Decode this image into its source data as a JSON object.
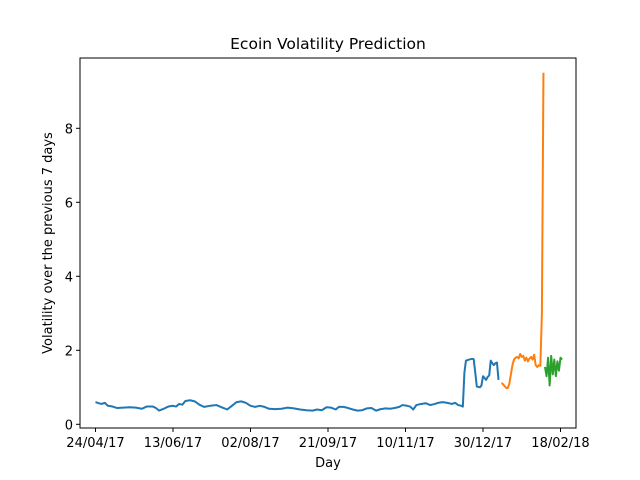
{
  "chart_data": {
    "type": "line",
    "title": "Ecoin Volatility Prediction",
    "xlabel": "Day",
    "ylabel": "Volatility over the previous 7 days",
    "xlim": [
      "2017-04-14",
      "2018-02-28"
    ],
    "ylim": [
      -0.1,
      9.9
    ],
    "x_ticks": [
      {
        "date": "2017-04-24",
        "label": "24/04/17"
      },
      {
        "date": "2017-06-13",
        "label": "13/06/17"
      },
      {
        "date": "2017-08-02",
        "label": "02/08/17"
      },
      {
        "date": "2017-09-21",
        "label": "21/09/17"
      },
      {
        "date": "2017-11-10",
        "label": "10/11/17"
      },
      {
        "date": "2017-12-30",
        "label": "30/12/17"
      },
      {
        "date": "2018-02-18",
        "label": "18/02/18"
      }
    ],
    "y_ticks": [
      0,
      2,
      4,
      6,
      8
    ],
    "grid": false,
    "series": [
      {
        "color": "#1f77b4",
        "points": [
          [
            "2017-04-24",
            0.6
          ],
          [
            "2017-04-26",
            0.57
          ],
          [
            "2017-04-28",
            0.55
          ],
          [
            "2017-04-30",
            0.58
          ],
          [
            "2017-05-02",
            0.5
          ],
          [
            "2017-05-05",
            0.48
          ],
          [
            "2017-05-08",
            0.44
          ],
          [
            "2017-05-12",
            0.45
          ],
          [
            "2017-05-16",
            0.46
          ],
          [
            "2017-05-20",
            0.45
          ],
          [
            "2017-05-24",
            0.42
          ],
          [
            "2017-05-27",
            0.48
          ],
          [
            "2017-05-31",
            0.48
          ],
          [
            "2017-06-02",
            0.44
          ],
          [
            "2017-06-04",
            0.37
          ],
          [
            "2017-06-07",
            0.42
          ],
          [
            "2017-06-10",
            0.48
          ],
          [
            "2017-06-13",
            0.5
          ],
          [
            "2017-06-15",
            0.48
          ],
          [
            "2017-06-17",
            0.55
          ],
          [
            "2017-06-19",
            0.53
          ],
          [
            "2017-06-21",
            0.63
          ],
          [
            "2017-06-24",
            0.65
          ],
          [
            "2017-06-27",
            0.62
          ],
          [
            "2017-06-30",
            0.53
          ],
          [
            "2017-07-03",
            0.47
          ],
          [
            "2017-07-07",
            0.5
          ],
          [
            "2017-07-11",
            0.52
          ],
          [
            "2017-07-15",
            0.45
          ],
          [
            "2017-07-18",
            0.4
          ],
          [
            "2017-07-21",
            0.5
          ],
          [
            "2017-07-24",
            0.6
          ],
          [
            "2017-07-27",
            0.62
          ],
          [
            "2017-07-30",
            0.58
          ],
          [
            "2017-08-02",
            0.5
          ],
          [
            "2017-08-05",
            0.47
          ],
          [
            "2017-08-08",
            0.5
          ],
          [
            "2017-08-11",
            0.47
          ],
          [
            "2017-08-14",
            0.42
          ],
          [
            "2017-08-18",
            0.41
          ],
          [
            "2017-08-22",
            0.42
          ],
          [
            "2017-08-26",
            0.45
          ],
          [
            "2017-08-30",
            0.43
          ],
          [
            "2017-09-03",
            0.4
          ],
          [
            "2017-09-07",
            0.38
          ],
          [
            "2017-09-11",
            0.37
          ],
          [
            "2017-09-14",
            0.4
          ],
          [
            "2017-09-17",
            0.38
          ],
          [
            "2017-09-20",
            0.46
          ],
          [
            "2017-09-23",
            0.45
          ],
          [
            "2017-09-26",
            0.4
          ],
          [
            "2017-09-28",
            0.47
          ],
          [
            "2017-10-01",
            0.47
          ],
          [
            "2017-10-04",
            0.44
          ],
          [
            "2017-10-07",
            0.4
          ],
          [
            "2017-10-10",
            0.37
          ],
          [
            "2017-10-13",
            0.38
          ],
          [
            "2017-10-16",
            0.43
          ],
          [
            "2017-10-19",
            0.44
          ],
          [
            "2017-10-22",
            0.37
          ],
          [
            "2017-10-25",
            0.41
          ],
          [
            "2017-10-28",
            0.43
          ],
          [
            "2017-10-31",
            0.42
          ],
          [
            "2017-11-03",
            0.44
          ],
          [
            "2017-11-06",
            0.47
          ],
          [
            "2017-11-08",
            0.52
          ],
          [
            "2017-11-11",
            0.5
          ],
          [
            "2017-11-13",
            0.48
          ],
          [
            "2017-11-15",
            0.4
          ],
          [
            "2017-11-17",
            0.52
          ],
          [
            "2017-11-20",
            0.55
          ],
          [
            "2017-11-23",
            0.57
          ],
          [
            "2017-11-26",
            0.52
          ],
          [
            "2017-11-29",
            0.55
          ],
          [
            "2017-12-01",
            0.58
          ],
          [
            "2017-12-04",
            0.6
          ],
          [
            "2017-12-07",
            0.58
          ],
          [
            "2017-12-10",
            0.55
          ],
          [
            "2017-12-12",
            0.58
          ],
          [
            "2017-12-14",
            0.52
          ],
          [
            "2017-12-16",
            0.5
          ],
          [
            "2017-12-17",
            0.48
          ],
          [
            "2017-12-18",
            1.4
          ],
          [
            "2017-12-19",
            1.72
          ],
          [
            "2017-12-21",
            1.75
          ],
          [
            "2017-12-23",
            1.77
          ],
          [
            "2017-12-24",
            1.76
          ],
          [
            "2017-12-25",
            1.4
          ],
          [
            "2017-12-26",
            1.02
          ],
          [
            "2017-12-28",
            1.0
          ],
          [
            "2017-12-29",
            1.05
          ],
          [
            "2017-12-30",
            1.3
          ],
          [
            "2017-12-31",
            1.25
          ],
          [
            "2018-01-01",
            1.2
          ],
          [
            "2018-01-02",
            1.28
          ],
          [
            "2018-01-03",
            1.32
          ],
          [
            "2018-01-04",
            1.72
          ],
          [
            "2018-01-05",
            1.65
          ],
          [
            "2018-01-06",
            1.6
          ],
          [
            "2018-01-07",
            1.65
          ],
          [
            "2018-01-08",
            1.67
          ],
          [
            "2018-01-09",
            1.2
          ]
        ]
      },
      {
        "color": "#ff7f0e",
        "points": [
          [
            "2018-01-11",
            1.12
          ],
          [
            "2018-01-12",
            1.08
          ],
          [
            "2018-01-13",
            1.03
          ],
          [
            "2018-01-14",
            0.98
          ],
          [
            "2018-01-15",
            0.98
          ],
          [
            "2018-01-16",
            1.1
          ],
          [
            "2018-01-17",
            1.35
          ],
          [
            "2018-01-18",
            1.6
          ],
          [
            "2018-01-19",
            1.75
          ],
          [
            "2018-01-20",
            1.8
          ],
          [
            "2018-01-21",
            1.82
          ],
          [
            "2018-01-22",
            1.78
          ],
          [
            "2018-01-23",
            1.9
          ],
          [
            "2018-01-24",
            1.82
          ],
          [
            "2018-01-25",
            1.85
          ],
          [
            "2018-01-26",
            1.72
          ],
          [
            "2018-01-27",
            1.8
          ],
          [
            "2018-01-28",
            1.7
          ],
          [
            "2018-01-29",
            1.78
          ],
          [
            "2018-01-30",
            1.82
          ],
          [
            "2018-01-31",
            1.75
          ],
          [
            "2018-02-01",
            1.88
          ],
          [
            "2018-02-02",
            1.6
          ],
          [
            "2018-02-03",
            1.55
          ],
          [
            "2018-02-04",
            1.6
          ],
          [
            "2018-02-05",
            1.58
          ],
          [
            "2018-02-06",
            3.0
          ],
          [
            "2018-02-07",
            9.5
          ]
        ]
      },
      {
        "color": "#2ca02c",
        "points": [
          [
            "2018-02-08",
            1.55
          ],
          [
            "2018-02-09",
            1.3
          ],
          [
            "2018-02-10",
            1.8
          ],
          [
            "2018-02-11",
            1.05
          ],
          [
            "2018-02-12",
            1.85
          ],
          [
            "2018-02-13",
            1.35
          ],
          [
            "2018-02-14",
            1.75
          ],
          [
            "2018-02-15",
            1.3
          ],
          [
            "2018-02-16",
            1.7
          ],
          [
            "2018-02-17",
            1.45
          ],
          [
            "2018-02-18",
            1.8
          ],
          [
            "2018-02-19",
            1.75
          ]
        ]
      }
    ]
  }
}
